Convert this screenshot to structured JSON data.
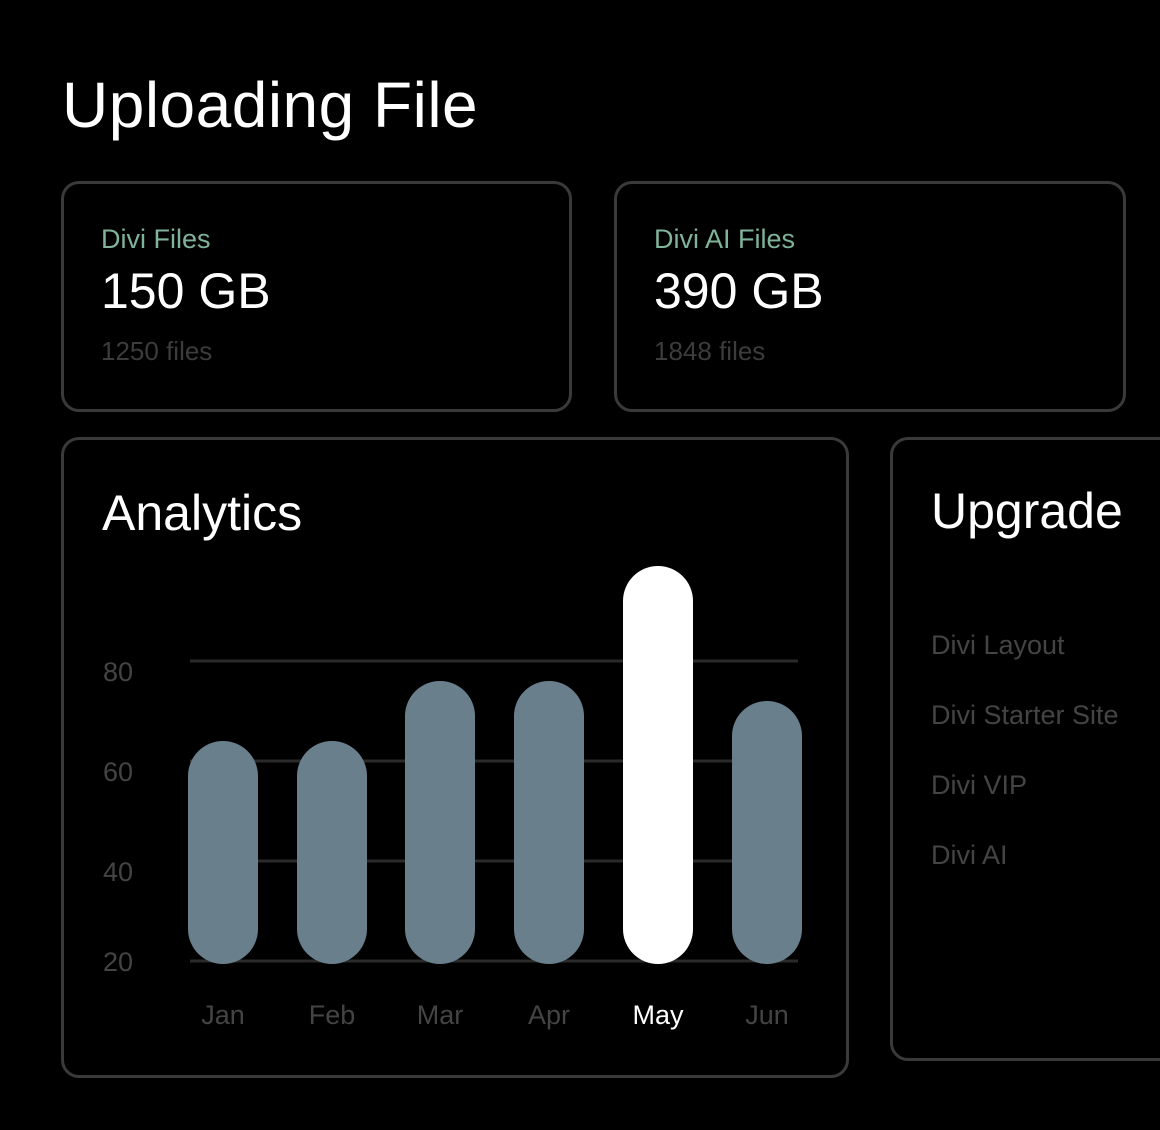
{
  "page_title": "Uploading File",
  "stats": [
    {
      "label": "Divi Files",
      "value": "150 GB",
      "sub": "1250 files"
    },
    {
      "label": "Divi AI Files",
      "value": "390 GB",
      "sub": "1848 files"
    }
  ],
  "analytics": {
    "title": "Analytics"
  },
  "upgrade": {
    "title": "Upgrade",
    "items": [
      "Divi Layout",
      "Divi Starter Site",
      "Divi VIP",
      "Divi AI"
    ]
  },
  "colors": {
    "bar": "#6a7f8c",
    "highlight": "#ffffff",
    "accent_label": "#7fb39a"
  },
  "chart_data": {
    "type": "bar",
    "categories": [
      "Jan",
      "Feb",
      "Mar",
      "Apr",
      "May",
      "Jun"
    ],
    "values": [
      64,
      64,
      76,
      76,
      99,
      72
    ],
    "highlighted": "May",
    "yticks": [
      "20",
      "40",
      "60",
      "80"
    ],
    "ylim": [
      20,
      100
    ],
    "grid": true,
    "title": "",
    "xlabel": "",
    "ylabel": ""
  }
}
